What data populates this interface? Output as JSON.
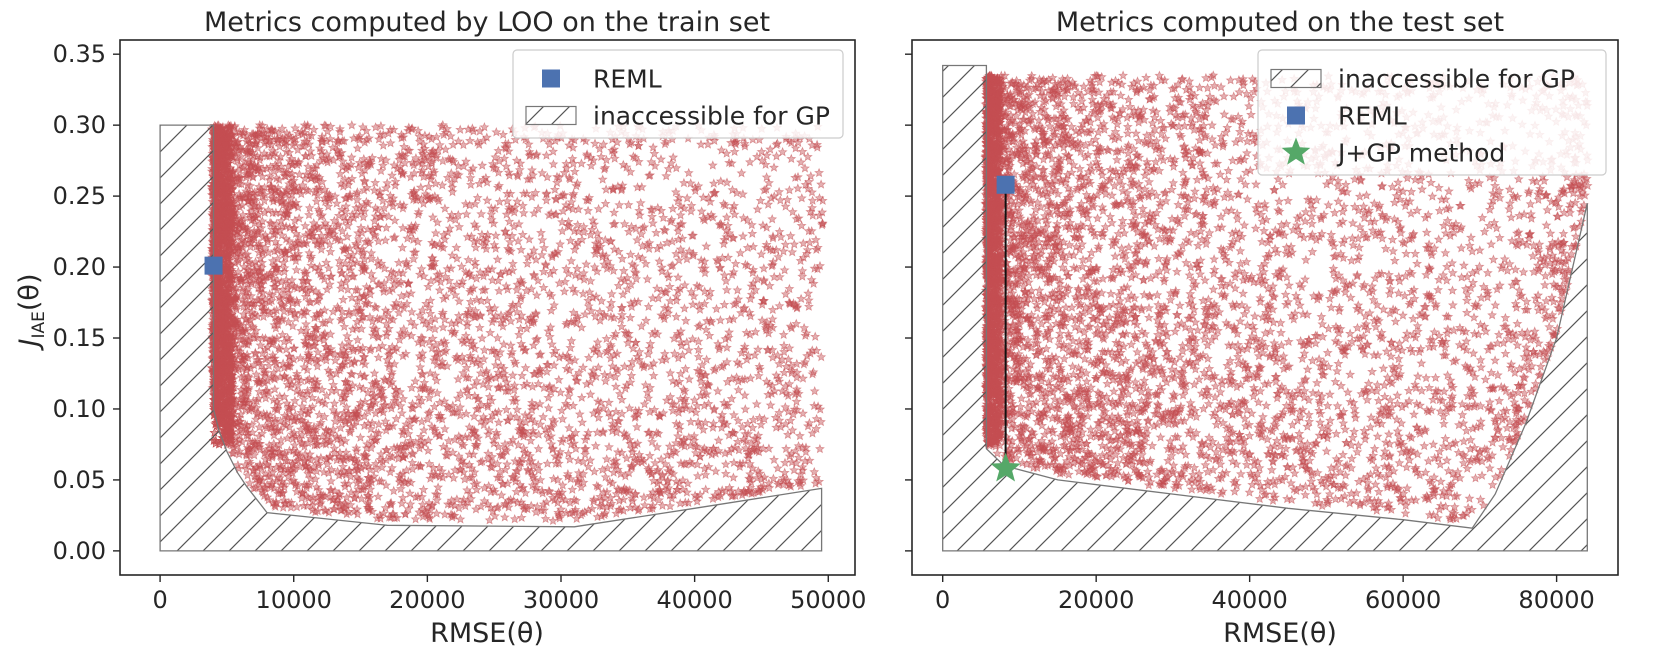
{
  "chart_data": [
    {
      "type": "scatter",
      "title": "Metrics computed by LOO on the train set",
      "xlabel": "RMSE(θ)",
      "ylabel": "J_IAE(θ)",
      "ylabel_main": "J",
      "ylabel_sub": "IAE",
      "ylabel_tail": "(θ)",
      "xlim": [
        -3000,
        52000
      ],
      "ylim": [
        -0.017,
        0.36
      ],
      "xticks": [
        0,
        10000,
        20000,
        30000,
        40000,
        50000
      ],
      "xtick_labels": [
        "0",
        "10000",
        "20000",
        "30000",
        "40000",
        "50000"
      ],
      "yticks": [
        0.0,
        0.05,
        0.1,
        0.15,
        0.2,
        0.25,
        0.3,
        0.35
      ],
      "ytick_labels": [
        "0.00",
        "0.05",
        "0.10",
        "0.15",
        "0.20",
        "0.25",
        "0.30",
        "0.35"
      ],
      "grid": false,
      "legend_position": "top-right",
      "legend": [
        {
          "kind": "square",
          "label": "REML",
          "color": "#4c72b0"
        },
        {
          "kind": "hatch",
          "label": "inaccessible for GP"
        }
      ],
      "inaccessible_region": {
        "x": [
          0,
          0,
          4000,
          4000,
          4400,
          5000,
          5800,
          6500,
          8000,
          17000,
          31000,
          40000,
          49500,
          49500
        ],
        "y": [
          0,
          0.3,
          0.3,
          0.1,
          0.085,
          0.07,
          0.055,
          0.045,
          0.027,
          0.018,
          0.017,
          0.03,
          0.044,
          0
        ]
      },
      "reml_point": {
        "x": 4000,
        "y": 0.201
      },
      "sample_cloud": {
        "description_free": true,
        "count_visual": 11000,
        "x_range": [
          4000,
          49500
        ],
        "y_max": 0.3
      },
      "marker_color": "#c44e52"
    },
    {
      "type": "scatter",
      "title": "Metrics computed on the test set",
      "xlabel": "RMSE(θ)",
      "ylabel": "",
      "xlim": [
        -4000,
        88000
      ],
      "ylim": [
        -0.017,
        0.36
      ],
      "xticks": [
        0,
        20000,
        40000,
        60000,
        80000
      ],
      "xtick_labels": [
        "0",
        "20000",
        "40000",
        "60000",
        "80000"
      ],
      "yticks": [
        0.0,
        0.05,
        0.1,
        0.15,
        0.2,
        0.25,
        0.3,
        0.35
      ],
      "ytick_labels": [
        "",
        "",
        "",
        "",
        "",
        "",
        "",
        ""
      ],
      "grid": false,
      "legend_position": "top-right",
      "legend": [
        {
          "kind": "hatch",
          "label": "inaccessible for GP"
        },
        {
          "kind": "square",
          "label": "REML",
          "color": "#4c72b0"
        },
        {
          "kind": "star",
          "label": "J+GP method",
          "color": "#55a868"
        }
      ],
      "inaccessible_region": {
        "x": [
          0,
          0,
          5700,
          5700,
          8000,
          15000,
          30000,
          45000,
          60000,
          69000,
          72000,
          76000,
          80000,
          84000,
          84000
        ],
        "y": [
          0,
          0.342,
          0.342,
          0.072,
          0.06,
          0.05,
          0.04,
          0.03,
          0.022,
          0.016,
          0.04,
          0.09,
          0.15,
          0.245,
          0
        ]
      },
      "reml_point": {
        "x": 8200,
        "y": 0.258
      },
      "jgp_point": {
        "x": 8200,
        "y": 0.058
      },
      "connector": {
        "x": 8200,
        "y_from": 0.258,
        "y_to": 0.058
      },
      "sample_cloud": {
        "description_free": true,
        "count_visual": 11000,
        "x_range": [
          5700,
          84000
        ],
        "y_max": 0.335
      },
      "marker_color": "#c44e52"
    }
  ]
}
